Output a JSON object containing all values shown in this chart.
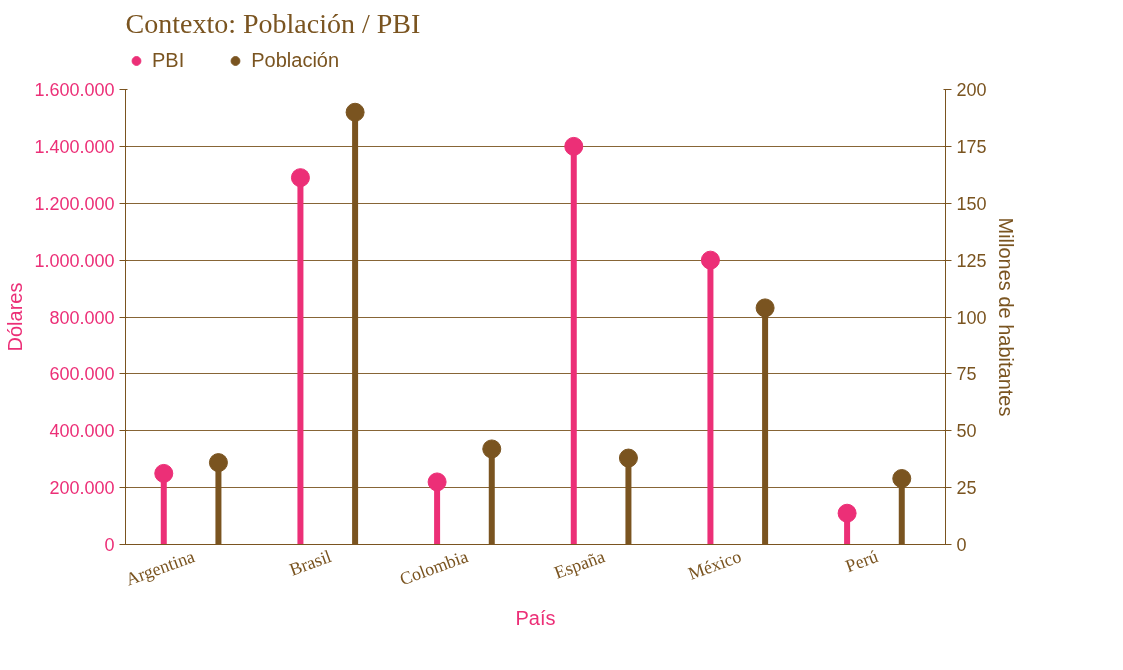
{
  "chart_data": {
    "type": "lollipop",
    "title": "Contexto: Población / PBI",
    "xlabel": "País",
    "ylabel": "Dólares",
    "y2label": "Millones de habitantes",
    "categories": [
      "Argentina",
      "Brasil",
      "Colombia",
      "España",
      "México",
      "Perú"
    ],
    "series": [
      {
        "name": "PBI",
        "color": "#ec2f77",
        "values": [
          250000,
          1290000,
          220000,
          1400000,
          1000000,
          110000
        ]
      },
      {
        "name": "Población",
        "color": "#7a5420",
        "axis": "y2",
        "values": [
          36,
          190,
          42,
          38,
          104,
          29
        ]
      }
    ],
    "ylim": [
      0,
      1600000
    ],
    "yticks": [
      {
        "value": 0,
        "label": "0"
      },
      {
        "value": 200000,
        "label": "200.000"
      },
      {
        "value": 400000,
        "label": "400.000"
      },
      {
        "value": 600000,
        "label": "600.000"
      },
      {
        "value": 800000,
        "label": "800.000"
      },
      {
        "value": 1000000,
        "label": "1.000.000"
      },
      {
        "value": 1200000,
        "label": "1.200.000"
      },
      {
        "value": 1400000,
        "label": "1.400.000"
      },
      {
        "value": 1600000,
        "label": "1.600.000"
      }
    ],
    "y2lim": [
      0,
      200
    ],
    "y2ticks": [
      0,
      25,
      50,
      75,
      100,
      125,
      150,
      175,
      200
    ],
    "grid": "y",
    "legend": "top left",
    "marker": "circle",
    "line_style": "solid"
  }
}
